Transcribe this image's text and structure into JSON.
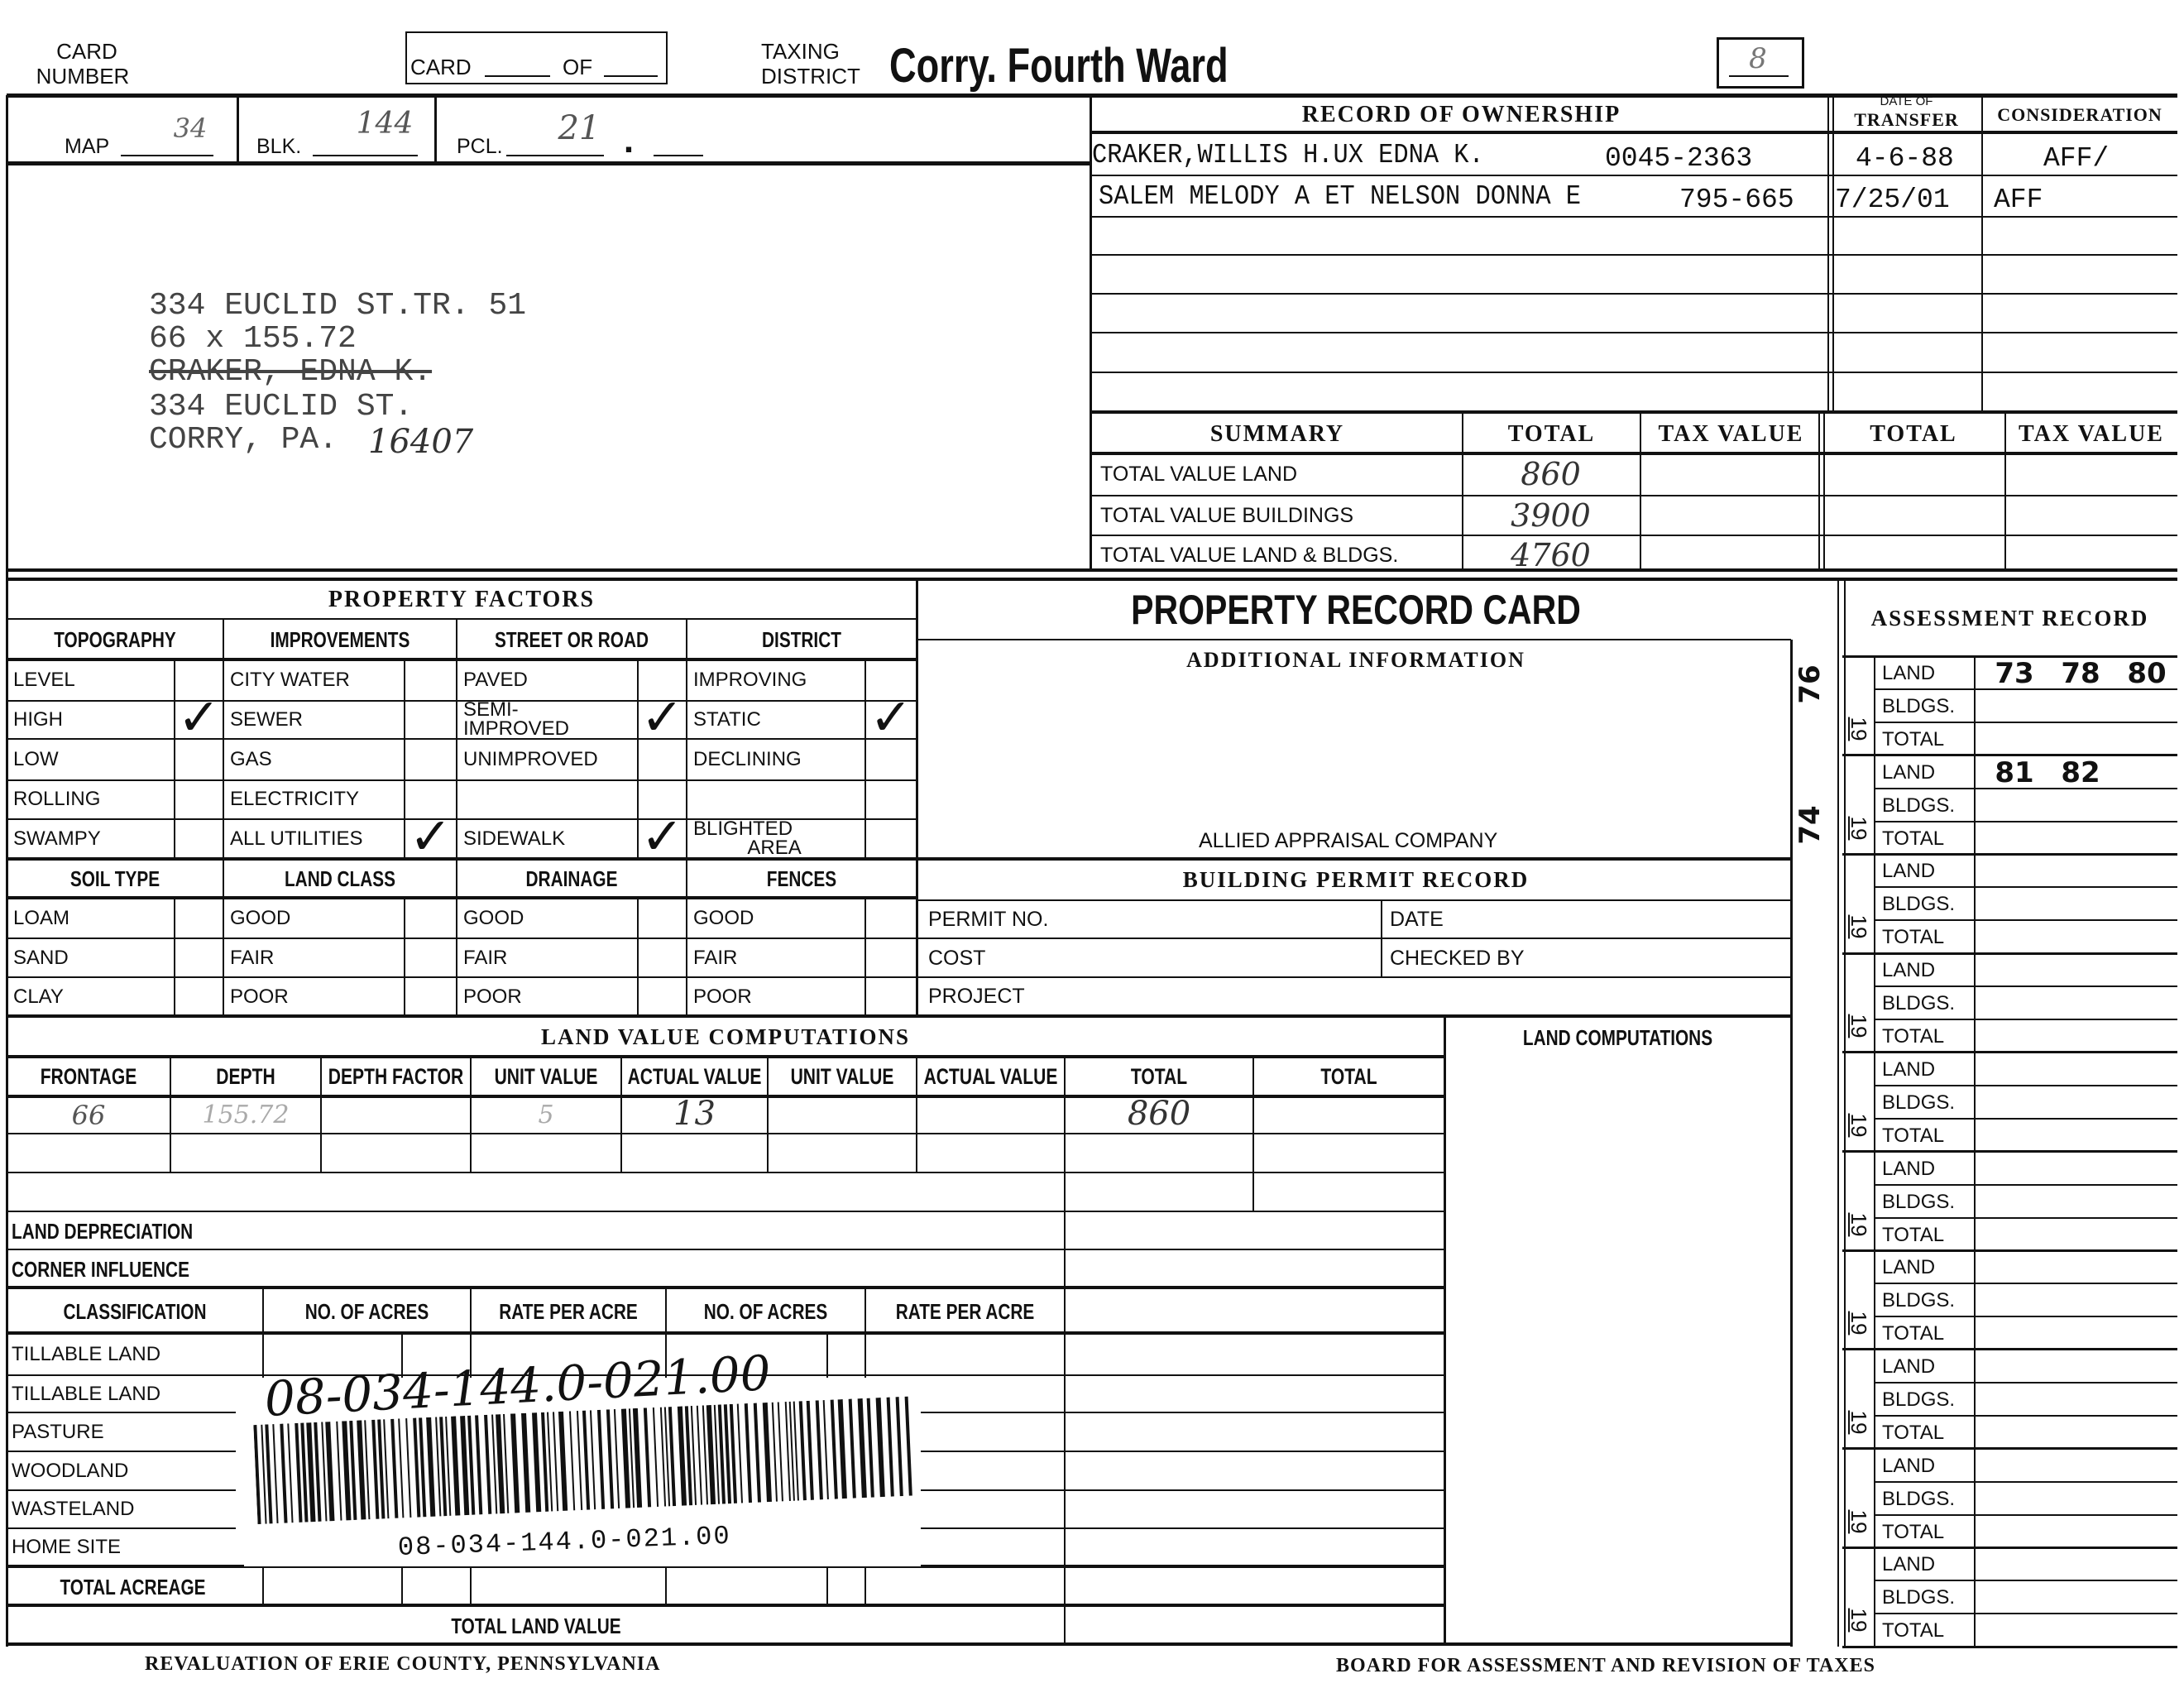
{
  "header": {
    "card_label": "CARD",
    "number_label": "NUMBER",
    "card_of_card": "CARD",
    "card_of_of": "OF",
    "taxing_label": "TAXING",
    "district_label": "DISTRICT",
    "taxing_district": "Corry. Fourth Ward",
    "box_value": "8"
  },
  "parcel": {
    "map_label": "MAP",
    "map": "34",
    "blk_label": "BLK.",
    "blk": "144",
    "pcl_label": "PCL.",
    "pcl": "21",
    "pcl_dot": "."
  },
  "address": {
    "lines": [
      "334 EUCLID ST.TR. 51",
      "66 x 155.72",
      "CRAKER, EDNA K.",
      "334 EUCLID ST.",
      "CORRY, PA."
    ],
    "zip_handwritten": "16407"
  },
  "ownership": {
    "title": "RECORD OF OWNERSHIP",
    "date_small": "DATE OF",
    "date_label": "TRANSFER",
    "consideration_label": "CONSIDERATION",
    "rows": [
      {
        "owner": "CRAKER,WILLIS H.UX EDNA K.",
        "deed": "0045-2363",
        "date": "4-6-88",
        "consideration": "AFF/"
      },
      {
        "owner": "SALEM MELODY A ET NELSON DONNA E",
        "deed": "795-665",
        "date": "7/25/01",
        "consideration": "AFF"
      }
    ]
  },
  "summary": {
    "headers": [
      "SUMMARY",
      "TOTAL",
      "TAX VALUE",
      "TOTAL",
      "TAX VALUE"
    ],
    "rows": [
      {
        "label": "TOTAL VALUE LAND",
        "total": "860"
      },
      {
        "label": "TOTAL VALUE BUILDINGS",
        "total": "3900"
      },
      {
        "label": "TOTAL VALUE LAND & BLDGS.",
        "total": "4760"
      }
    ]
  },
  "property_factors": {
    "title": "PROPERTY FACTORS",
    "columns": [
      {
        "header": "TOPOGRAPHY",
        "items": [
          {
            "label": "LEVEL",
            "checked": false
          },
          {
            "label": "HIGH",
            "checked": true
          },
          {
            "label": "LOW",
            "checked": false
          },
          {
            "label": "ROLLING",
            "checked": false
          },
          {
            "label": "SWAMPY",
            "checked": false
          }
        ]
      },
      {
        "header": "IMPROVEMENTS",
        "items": [
          {
            "label": "CITY WATER",
            "checked": false
          },
          {
            "label": "SEWER",
            "checked": false
          },
          {
            "label": "GAS",
            "checked": false
          },
          {
            "label": "ELECTRICITY",
            "checked": false
          },
          {
            "label": "ALL UTILITIES",
            "checked": true
          }
        ]
      },
      {
        "header": "STREET OR ROAD",
        "items": [
          {
            "label": "PAVED",
            "checked": false
          },
          {
            "label": "SEMI-\nIMPROVED",
            "checked": true
          },
          {
            "label": "UNIMPROVED",
            "checked": false
          },
          {
            "label": "",
            "checked": false
          },
          {
            "label": "SIDEWALK",
            "checked": true
          }
        ]
      },
      {
        "header": "DISTRICT",
        "items": [
          {
            "label": "IMPROVING",
            "checked": false
          },
          {
            "label": "STATIC",
            "checked": true
          },
          {
            "label": "DECLINING",
            "checked": false
          },
          {
            "label": "",
            "checked": false
          },
          {
            "label": "BLIGHTED\n          AREA",
            "checked": false
          }
        ]
      }
    ],
    "lower_columns": [
      {
        "header": "SOIL TYPE",
        "items": [
          "LOAM",
          "SAND",
          "CLAY"
        ]
      },
      {
        "header": "LAND CLASS",
        "items": [
          "GOOD",
          "FAIR",
          "POOR"
        ]
      },
      {
        "header": "DRAINAGE",
        "items": [
          "GOOD",
          "FAIR",
          "POOR"
        ]
      },
      {
        "header": "FENCES",
        "items": [
          "GOOD",
          "FAIR",
          "POOR"
        ]
      }
    ]
  },
  "record_card": {
    "title": "PROPERTY RECORD CARD",
    "additional_info": "ADDITIONAL INFORMATION",
    "appraiser": "ALLIED APPRAISAL COMPANY",
    "permit_title": "BUILDING PERMIT RECORD",
    "permit_no": "PERMIT NO.",
    "date": "DATE",
    "cost": "COST",
    "checked_by": "CHECKED BY",
    "project": "PROJECT"
  },
  "land_value": {
    "title": "LAND VALUE COMPUTATIONS",
    "headers": [
      "FRONTAGE",
      "DEPTH",
      "DEPTH FACTOR",
      "UNIT VALUE",
      "ACTUAL VALUE",
      "UNIT VALUE",
      "ACTUAL VALUE",
      "TOTAL",
      "TOTAL"
    ],
    "row1": {
      "frontage": "66",
      "depth": "155.72",
      "unit_value": "5",
      "actual_value": "13",
      "total": "860"
    },
    "land_depreciation": "LAND DEPRECIATION",
    "corner_influence": "CORNER INFLUENCE",
    "land_computations": "LAND COMPUTATIONS"
  },
  "classification": {
    "headers": [
      "CLASSIFICATION",
      "NO. OF ACRES",
      "RATE PER ACRE",
      "NO. OF ACRES",
      "RATE PER ACRE"
    ],
    "rows": [
      "TILLABLE LAND",
      "TILLABLE LAND",
      "PASTURE",
      "WOODLAND",
      "WASTELAND",
      "HOME SITE"
    ],
    "total_acreage": "TOTAL ACREAGE",
    "total_land_value": "TOTAL LAND VALUE"
  },
  "parcel_id": {
    "handwritten": "08-034-144.0-021.00",
    "barcode_text": "08-034-144.0-021.00"
  },
  "assessment": {
    "title": "ASSESSMENT RECORD",
    "year_prefix": "19",
    "labels": [
      "LAND",
      "BLDGS.",
      "TOTAL"
    ],
    "stamps": [
      "76",
      "74",
      "73",
      "78",
      "80",
      "81",
      "82"
    ]
  },
  "footer": {
    "left": "REVALUATION OF ERIE COUNTY, PENNSYLVANIA",
    "right": "BOARD FOR ASSESSMENT AND REVISION OF TAXES"
  }
}
